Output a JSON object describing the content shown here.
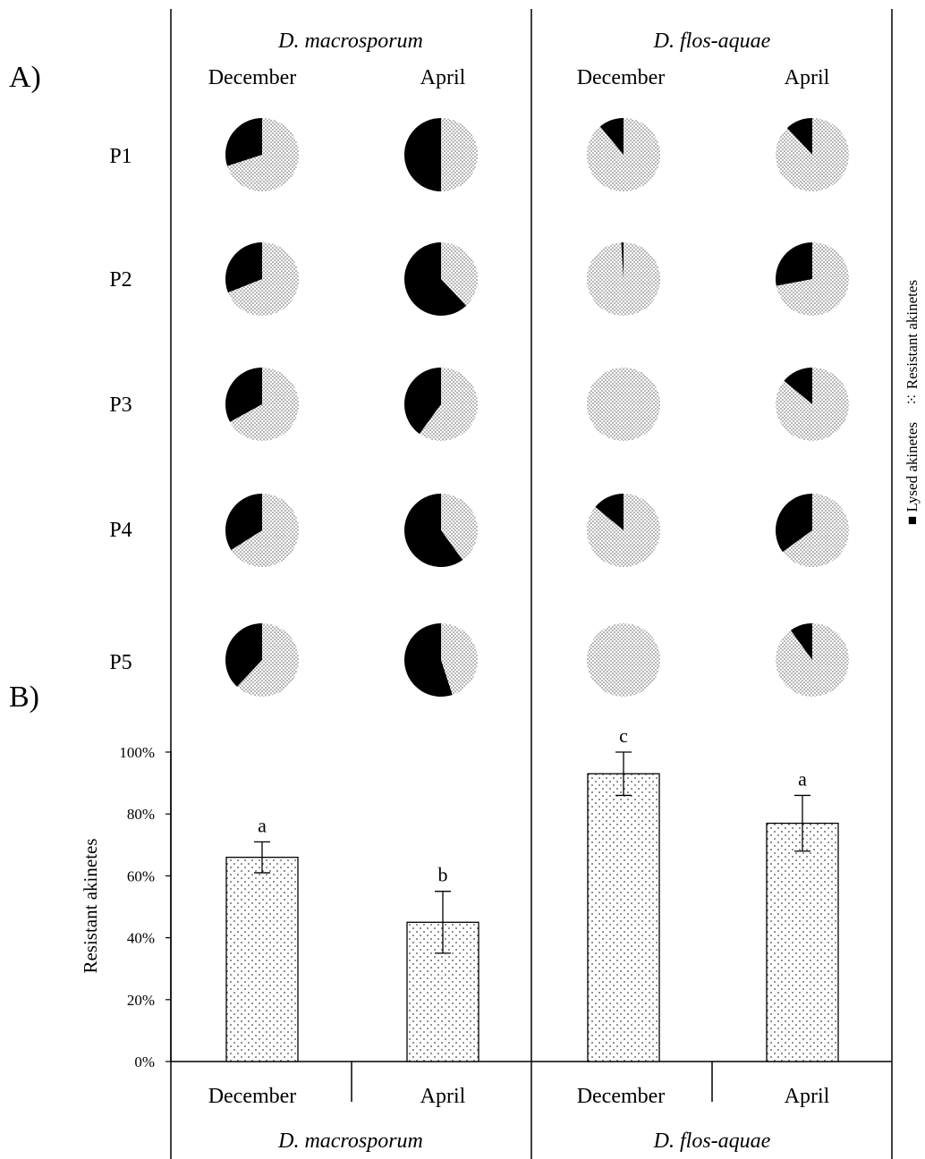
{
  "panel_a_label": "A)",
  "panel_b_label": "B)",
  "species": [
    "D. macrosporum",
    "D. flos-aquae"
  ],
  "months": [
    "December",
    "April"
  ],
  "rows": [
    "P1",
    "P2",
    "P3",
    "P4",
    "P5"
  ],
  "legend": {
    "lysed": {
      "marker": "■",
      "label": "Lysed akinetes"
    },
    "resistant": {
      "marker": "⁙",
      "label": "Resistant akinetes"
    }
  },
  "colors": {
    "lysed": "#000000",
    "resistant_dot": "#555555",
    "background": "#ffffff"
  },
  "chart_data": [
    {
      "type": "pie",
      "panel": "A)",
      "columns": [
        "D. macrosporum December",
        "D. macrosporum April",
        "D. flos-aquae December",
        "D. flos-aquae April"
      ],
      "rows": [
        "P1",
        "P2",
        "P3",
        "P4",
        "P5"
      ],
      "series": [
        {
          "name": "Lysed akinetes"
        },
        {
          "name": "Resistant akinetes"
        }
      ],
      "lysed_fraction": [
        [
          0.3,
          0.5,
          0.11,
          0.12
        ],
        [
          0.31,
          0.62,
          0.01,
          0.28
        ],
        [
          0.33,
          0.4,
          0.0,
          0.14
        ],
        [
          0.34,
          0.6,
          0.14,
          0.35
        ],
        [
          0.38,
          0.55,
          0.0,
          0.1
        ]
      ]
    },
    {
      "type": "bar",
      "panel": "B)",
      "categories": [
        {
          "month": "December",
          "species": "D. macrosporum",
          "value": 66,
          "error": 5,
          "letter": "a"
        },
        {
          "month": "April",
          "species": "D. macrosporum",
          "value": 45,
          "error": 10,
          "letter": "b"
        },
        {
          "month": "December",
          "species": "D. flos-aquae",
          "value": 93,
          "error": 7,
          "letter": "c"
        },
        {
          "month": "April",
          "species": "D. flos-aquae",
          "value": 77,
          "error": 9,
          "letter": "a"
        }
      ],
      "ylabel": "Resistant  akinetes",
      "ylim": [
        0,
        100
      ],
      "yticks": [
        "0%",
        "20%",
        "40%",
        "60%",
        "80%",
        "100%"
      ],
      "grid": false
    }
  ]
}
